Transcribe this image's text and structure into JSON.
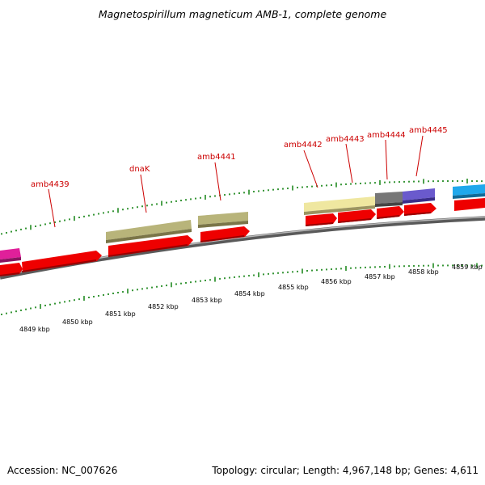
{
  "title": "Magnetospirillum magneticum AMB-1, complete genome",
  "footer": {
    "accession": "Accession: NC_007626",
    "topology": "Topology: circular; Length: 4,967,148 bp; Genes: 4,611"
  },
  "colors": {
    "cds": "#ee0000",
    "gene_label": "#cc0000",
    "backbone": "#808080",
    "tick": "#228b22",
    "olive_feature": "#b5b07a",
    "pale_yellow_feature": "#efe7a0",
    "gray_feature": "#808080",
    "purple_feature": "#7060c8",
    "magenta_feature": "#e0209a",
    "cyan_feature": "#22aaee"
  },
  "genes": [
    {
      "label": "amb4439"
    },
    {
      "label": "dnaK"
    },
    {
      "label": "amb4441"
    },
    {
      "label": "amb4442"
    },
    {
      "label": "amb4443"
    },
    {
      "label": "amb4444"
    },
    {
      "label": "amb4445"
    }
  ],
  "scale_labels": [
    "4849 kbp",
    "4850 kbp",
    "4851 kbp",
    "4852 kbp",
    "4853 kbp",
    "4854 kbp",
    "4855 kbp",
    "4856 kbp",
    "4857 kbp",
    "4858 kbp",
    "4859 kbp"
  ]
}
